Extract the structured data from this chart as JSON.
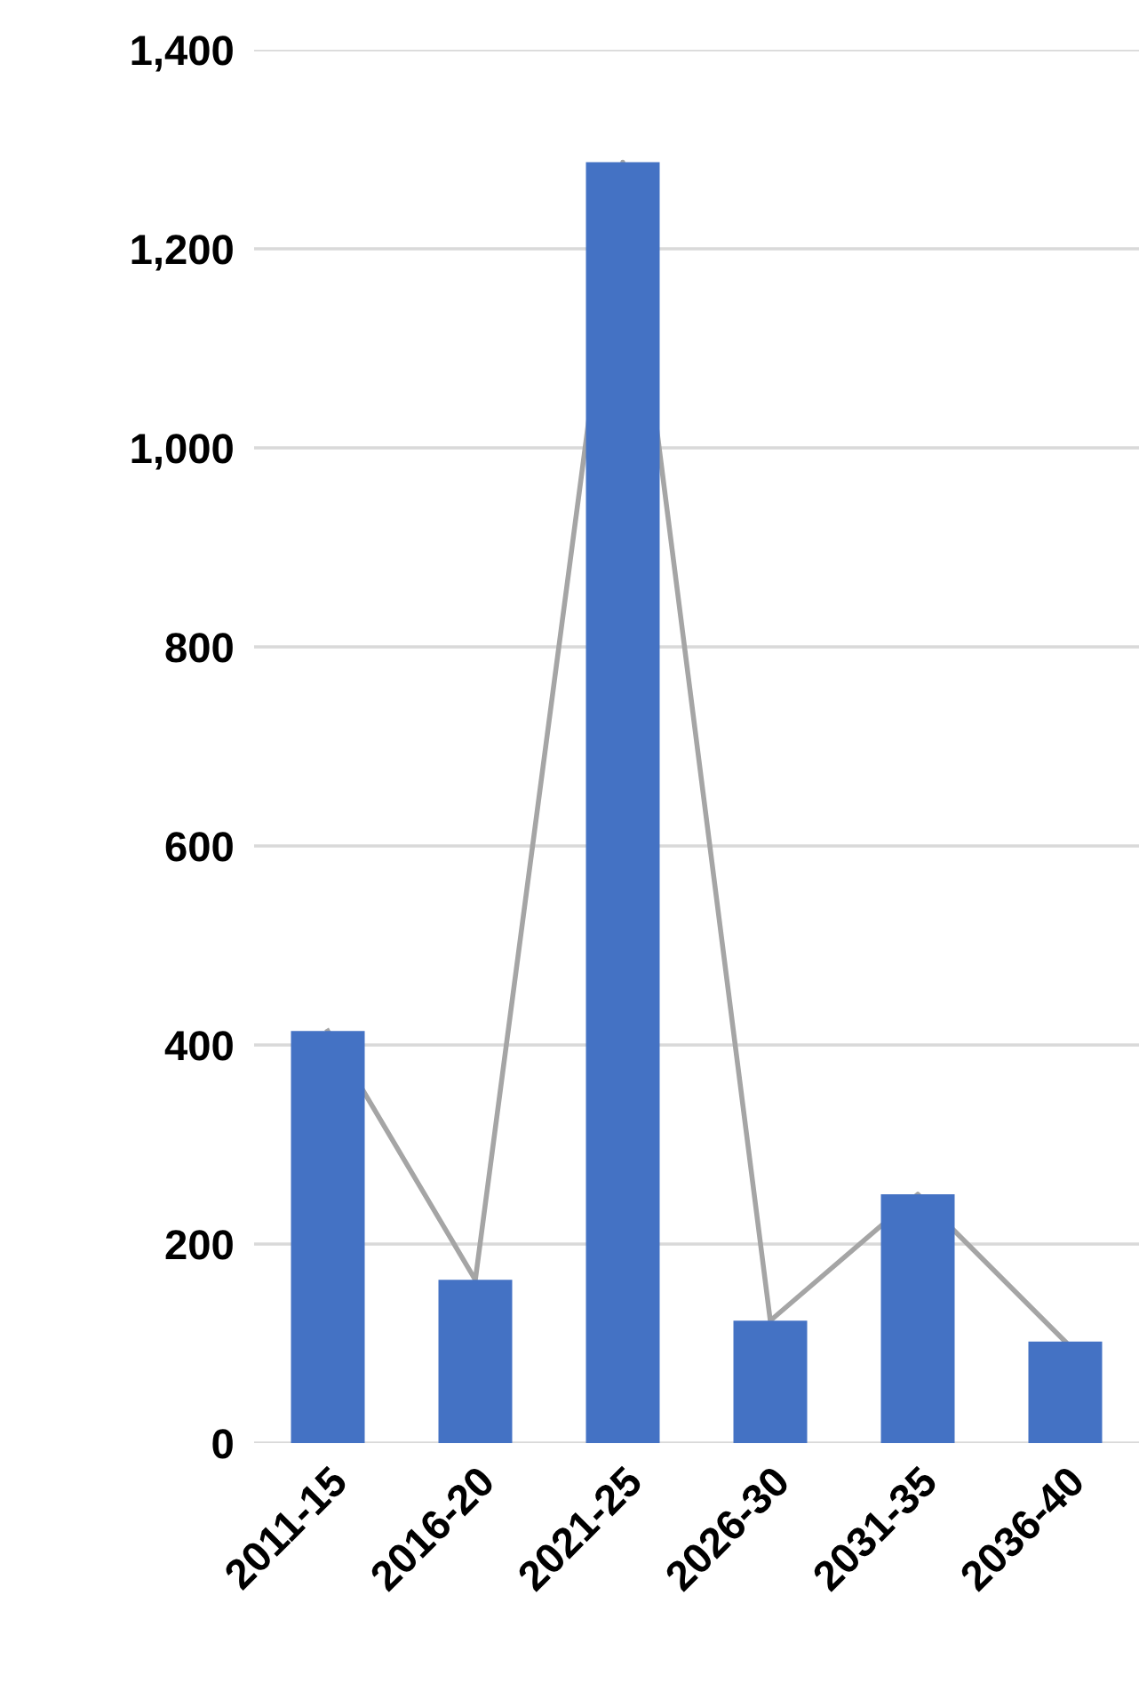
{
  "chart_data": {
    "type": "bar",
    "categories": [
      "2011-15",
      "2016-20",
      "2021-25",
      "2026-30",
      "2031-35",
      "2036-40"
    ],
    "series": [
      {
        "color": "#4472c4",
        "values": [
          414,
          164,
          1287,
          123,
          250,
          102
        ]
      },
      {
        "type": "line",
        "color": "#a5a5a5",
        "values": [
          414,
          164,
          1287,
          123,
          250,
          102
        ]
      }
    ],
    "ylim": [
      0,
      1400
    ],
    "yticks": [
      {
        "value": 0,
        "label": "0"
      },
      {
        "value": 200,
        "label": "200"
      },
      {
        "value": 400,
        "label": "400"
      },
      {
        "value": 600,
        "label": "600"
      },
      {
        "value": 800,
        "label": "800"
      },
      {
        "value": 1000,
        "label": "1,000"
      },
      {
        "value": 1200,
        "label": "1,200"
      },
      {
        "value": 1400,
        "label": "1,400"
      }
    ],
    "grid": "y"
  }
}
